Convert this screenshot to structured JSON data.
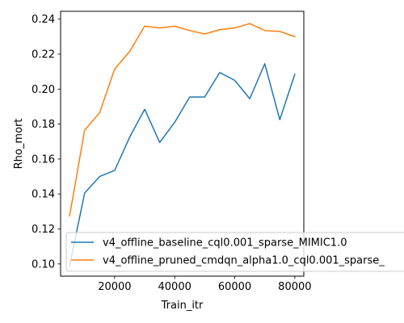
{
  "chart_data": {
    "type": "line",
    "title": "",
    "xlabel": "Train_itr",
    "ylabel": "Rho_mort",
    "xlim": [
      2000,
      83000
    ],
    "ylim": [
      0.093,
      0.2445
    ],
    "x_ticks": [
      20000,
      40000,
      60000,
      80000
    ],
    "x_tick_labels": [
      "20000",
      "40000",
      "60000",
      "80000"
    ],
    "y_ticks": [
      0.1,
      0.12,
      0.14,
      0.16,
      0.18,
      0.2,
      0.22,
      0.24
    ],
    "y_tick_labels": [
      "0.10",
      "0.12",
      "0.14",
      "0.16",
      "0.18",
      "0.20",
      "0.22",
      "0.24"
    ],
    "grid": false,
    "legend_position": "lower-right",
    "x": [
      5000,
      10000,
      15000,
      20000,
      25000,
      30000,
      35000,
      40000,
      45000,
      50000,
      55000,
      60000,
      65000,
      70000,
      75000,
      80000
    ],
    "series": [
      {
        "name": "v4_offline_baseline_cql0.001_sparse_MIMIC1.0",
        "color": "#1f77b4",
        "values": [
          0.099,
          0.1405,
          0.15,
          0.1535,
          0.1725,
          0.1885,
          0.1695,
          0.181,
          0.1955,
          0.1955,
          0.2095,
          0.205,
          0.1945,
          0.2145,
          0.1825,
          0.2085
        ]
      },
      {
        "name": "v4_offline_pruned_cmdqn_alpha1.0_cql0.001_sparse_",
        "color": "#ff7f0e",
        "values": [
          0.1275,
          0.1765,
          0.1865,
          0.2115,
          0.2215,
          0.236,
          0.235,
          0.236,
          0.2335,
          0.2315,
          0.234,
          0.235,
          0.2375,
          0.2335,
          0.233,
          0.23
        ]
      }
    ]
  }
}
